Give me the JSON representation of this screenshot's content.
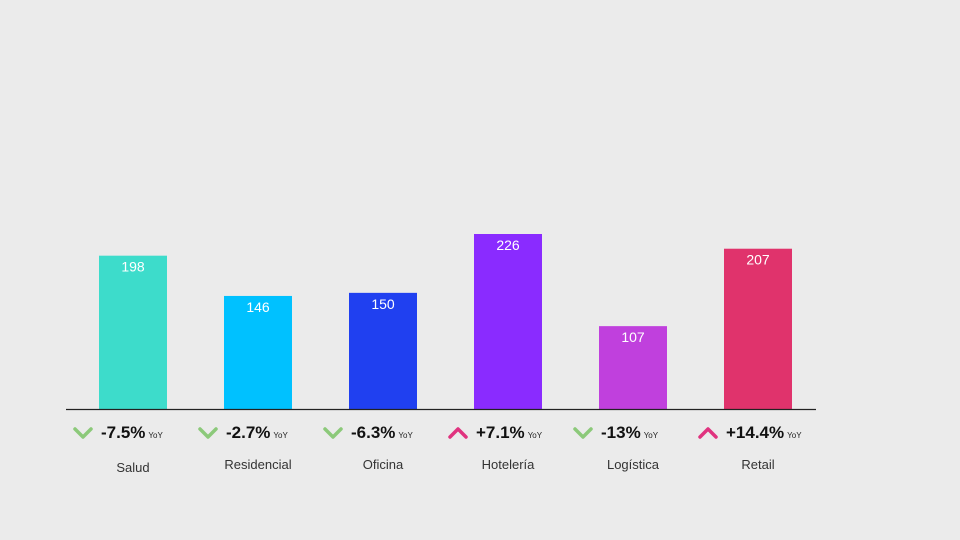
{
  "chart_data": {
    "type": "bar",
    "categories": [
      "Salud",
      "Residencial",
      "Oficina",
      "Hotelería",
      "Logística",
      "Retail"
    ],
    "values": [
      198,
      146,
      150,
      226,
      107,
      207
    ],
    "bar_colors": [
      "#3ddccb",
      "#00c1ff",
      "#2040f0",
      "#8a2bff",
      "#c040dd",
      "#e0336c"
    ],
    "yoy": [
      {
        "value": "-7.5%",
        "direction": "down",
        "icon": "chevron-down-icon"
      },
      {
        "value": "-2.7%",
        "direction": "down",
        "icon": "chevron-down-icon"
      },
      {
        "value": "-6.3%",
        "direction": "down",
        "icon": "chevron-down-icon"
      },
      {
        "value": "+7.1%",
        "direction": "up",
        "icon": "chevron-up-icon"
      },
      {
        "value": "-13%",
        "direction": "down",
        "icon": "chevron-down-icon"
      },
      {
        "value": "+14.4%",
        "direction": "up",
        "icon": "chevron-up-icon"
      }
    ],
    "yoy_unit": "YoY",
    "colors": {
      "down": "#8cc97a",
      "up": "#e0337f",
      "background": "#ebebeb",
      "axis": "#222222"
    },
    "ylim": [
      0,
      226
    ],
    "grid": false,
    "legend": "none"
  }
}
